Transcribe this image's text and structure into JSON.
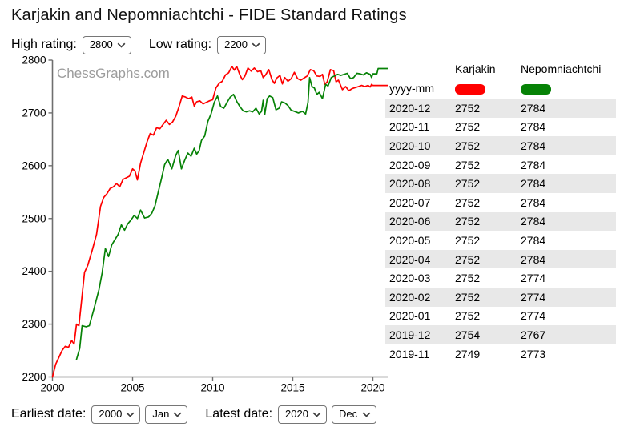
{
  "header": {
    "title": "Karjakin and Nepomniachtchi - FIDE Standard Ratings"
  },
  "watermark": "ChessGraphs.com",
  "controls": {
    "high_rating_label": "High rating:",
    "high_rating_value": "2800",
    "low_rating_label": "Low rating:",
    "low_rating_value": "2200",
    "earliest_date_label": "Earliest date:",
    "earliest_year_value": "2000",
    "earliest_month_value": "Jan",
    "latest_date_label": "Latest date:",
    "latest_year_value": "2020",
    "latest_month_value": "Dec"
  },
  "colors": {
    "karjakin": "#ff0000",
    "nepomniachtchi": "#068206",
    "axis": "#6f6f6f",
    "alt_row": "#e8e8e8",
    "watermark": "#9c9c9c"
  },
  "chart_data": {
    "type": "line",
    "title": "Karjakin and Nepomniachtchi - FIDE Standard Ratings",
    "xlabel": "",
    "ylabel": "",
    "xlim": [
      2000,
      2021
    ],
    "ylim": [
      2200,
      2800
    ],
    "x_ticks": [
      2000,
      2005,
      2010,
      2015,
      2020
    ],
    "y_ticks": [
      2200,
      2300,
      2400,
      2500,
      2600,
      2700,
      2800
    ],
    "grid": false,
    "legend_position": "table-right",
    "series": [
      {
        "name": "Karjakin",
        "color": "#ff0000",
        "points": [
          [
            2000.0,
            2200
          ],
          [
            2000.2,
            2224
          ],
          [
            2000.4,
            2237
          ],
          [
            2000.6,
            2250
          ],
          [
            2000.8,
            2258
          ],
          [
            2001.0,
            2256
          ],
          [
            2001.2,
            2269
          ],
          [
            2001.35,
            2262
          ],
          [
            2001.5,
            2300
          ],
          [
            2001.65,
            2297
          ],
          [
            2001.8,
            2340
          ],
          [
            2002.0,
            2398
          ],
          [
            2002.2,
            2411
          ],
          [
            2002.5,
            2442
          ],
          [
            2002.75,
            2470
          ],
          [
            2003.0,
            2523
          ],
          [
            2003.2,
            2540
          ],
          [
            2003.4,
            2547
          ],
          [
            2003.6,
            2557
          ],
          [
            2003.8,
            2560
          ],
          [
            2004.0,
            2566
          ],
          [
            2004.2,
            2560
          ],
          [
            2004.4,
            2574
          ],
          [
            2004.6,
            2577
          ],
          [
            2004.8,
            2580
          ],
          [
            2005.0,
            2594
          ],
          [
            2005.15,
            2590
          ],
          [
            2005.3,
            2573
          ],
          [
            2005.5,
            2605
          ],
          [
            2005.7,
            2625
          ],
          [
            2005.9,
            2645
          ],
          [
            2006.1,
            2661
          ],
          [
            2006.3,
            2658
          ],
          [
            2006.5,
            2672
          ],
          [
            2006.7,
            2670
          ],
          [
            2006.9,
            2678
          ],
          [
            2007.1,
            2686
          ],
          [
            2007.3,
            2678
          ],
          [
            2007.5,
            2683
          ],
          [
            2007.7,
            2694
          ],
          [
            2007.9,
            2712
          ],
          [
            2008.1,
            2732
          ],
          [
            2008.3,
            2730
          ],
          [
            2008.5,
            2727
          ],
          [
            2008.7,
            2730
          ],
          [
            2008.85,
            2713
          ],
          [
            2009.0,
            2721
          ],
          [
            2009.2,
            2723
          ],
          [
            2009.4,
            2717
          ],
          [
            2009.6,
            2720
          ],
          [
            2009.8,
            2723
          ],
          [
            2010.0,
            2725
          ],
          [
            2010.2,
            2747
          ],
          [
            2010.4,
            2756
          ],
          [
            2010.6,
            2760
          ],
          [
            2010.8,
            2772
          ],
          [
            2011.0,
            2776
          ],
          [
            2011.2,
            2788
          ],
          [
            2011.35,
            2781
          ],
          [
            2011.5,
            2788
          ],
          [
            2011.7,
            2772
          ],
          [
            2011.85,
            2763
          ],
          [
            2012.0,
            2769
          ],
          [
            2012.2,
            2785
          ],
          [
            2012.4,
            2779
          ],
          [
            2012.6,
            2785
          ],
          [
            2012.8,
            2778
          ],
          [
            2013.0,
            2780
          ],
          [
            2013.15,
            2767
          ],
          [
            2013.3,
            2772
          ],
          [
            2013.5,
            2782
          ],
          [
            2013.7,
            2763
          ],
          [
            2013.85,
            2756
          ],
          [
            2014.0,
            2766
          ],
          [
            2014.2,
            2771
          ],
          [
            2014.35,
            2755
          ],
          [
            2014.5,
            2767
          ],
          [
            2014.7,
            2760
          ],
          [
            2014.9,
            2765
          ],
          [
            2015.1,
            2777
          ],
          [
            2015.3,
            2765
          ],
          [
            2015.5,
            2762
          ],
          [
            2015.7,
            2766
          ],
          [
            2015.9,
            2770
          ],
          [
            2016.1,
            2782
          ],
          [
            2016.3,
            2780
          ],
          [
            2016.5,
            2770
          ],
          [
            2016.7,
            2769
          ],
          [
            2016.85,
            2773
          ],
          [
            2017.0,
            2754
          ],
          [
            2017.15,
            2759
          ],
          [
            2017.35,
            2782
          ],
          [
            2017.55,
            2780
          ],
          [
            2017.7,
            2759
          ],
          [
            2017.85,
            2762
          ],
          [
            2018.1,
            2744
          ],
          [
            2018.3,
            2750
          ],
          [
            2018.5,
            2742
          ],
          [
            2018.7,
            2746
          ],
          [
            2018.9,
            2748
          ],
          [
            2019.1,
            2750
          ],
          [
            2019.3,
            2752
          ],
          [
            2019.5,
            2750
          ],
          [
            2019.7,
            2752
          ],
          [
            2019.83,
            2749
          ],
          [
            2019.92,
            2754
          ],
          [
            2020.0,
            2752
          ],
          [
            2020.92,
            2752
          ]
        ]
      },
      {
        "name": "Nepomniachtchi",
        "color": "#068206",
        "points": [
          [
            2001.5,
            2233
          ],
          [
            2001.7,
            2254
          ],
          [
            2001.85,
            2297
          ],
          [
            2002.1,
            2295
          ],
          [
            2002.3,
            2297
          ],
          [
            2002.6,
            2330
          ],
          [
            2002.9,
            2365
          ],
          [
            2003.1,
            2397
          ],
          [
            2003.3,
            2443
          ],
          [
            2003.5,
            2428
          ],
          [
            2003.7,
            2450
          ],
          [
            2003.9,
            2460
          ],
          [
            2004.1,
            2470
          ],
          [
            2004.3,
            2488
          ],
          [
            2004.5,
            2478
          ],
          [
            2004.7,
            2490
          ],
          [
            2004.9,
            2497
          ],
          [
            2005.1,
            2506
          ],
          [
            2005.3,
            2500
          ],
          [
            2005.5,
            2516
          ],
          [
            2005.75,
            2501
          ],
          [
            2006.0,
            2503
          ],
          [
            2006.2,
            2510
          ],
          [
            2006.4,
            2524
          ],
          [
            2006.6,
            2550
          ],
          [
            2006.8,
            2575
          ],
          [
            2007.0,
            2602
          ],
          [
            2007.2,
            2612
          ],
          [
            2007.45,
            2594
          ],
          [
            2007.7,
            2620
          ],
          [
            2007.85,
            2629
          ],
          [
            2008.05,
            2594
          ],
          [
            2008.25,
            2610
          ],
          [
            2008.45,
            2624
          ],
          [
            2008.65,
            2618
          ],
          [
            2008.85,
            2633
          ],
          [
            2009.0,
            2622
          ],
          [
            2009.15,
            2628
          ],
          [
            2009.3,
            2648
          ],
          [
            2009.5,
            2656
          ],
          [
            2009.7,
            2684
          ],
          [
            2009.9,
            2698
          ],
          [
            2010.1,
            2720
          ],
          [
            2010.3,
            2732
          ],
          [
            2010.5,
            2712
          ],
          [
            2010.7,
            2709
          ],
          [
            2010.9,
            2720
          ],
          [
            2011.1,
            2730
          ],
          [
            2011.3,
            2735
          ],
          [
            2011.5,
            2722
          ],
          [
            2011.7,
            2712
          ],
          [
            2011.9,
            2704
          ],
          [
            2012.1,
            2702
          ],
          [
            2012.3,
            2704
          ],
          [
            2012.5,
            2702
          ],
          [
            2012.7,
            2709
          ],
          [
            2012.9,
            2698
          ],
          [
            2013.05,
            2703
          ],
          [
            2013.15,
            2724
          ],
          [
            2013.25,
            2697
          ],
          [
            2013.4,
            2727
          ],
          [
            2013.55,
            2732
          ],
          [
            2013.75,
            2729
          ],
          [
            2013.95,
            2706
          ],
          [
            2014.15,
            2709
          ],
          [
            2014.3,
            2721
          ],
          [
            2014.5,
            2719
          ],
          [
            2014.7,
            2714
          ],
          [
            2014.9,
            2705
          ],
          [
            2015.1,
            2703
          ],
          [
            2015.35,
            2700
          ],
          [
            2015.6,
            2703
          ],
          [
            2015.8,
            2698
          ],
          [
            2015.95,
            2720
          ],
          [
            2016.05,
            2767
          ],
          [
            2016.2,
            2750
          ],
          [
            2016.35,
            2747
          ],
          [
            2016.5,
            2735
          ],
          [
            2016.65,
            2739
          ],
          [
            2016.85,
            2727
          ],
          [
            2017.05,
            2754
          ],
          [
            2017.2,
            2751
          ],
          [
            2017.4,
            2767
          ],
          [
            2017.6,
            2770
          ],
          [
            2017.8,
            2773
          ],
          [
            2018.0,
            2771
          ],
          [
            2018.2,
            2773
          ],
          [
            2018.4,
            2775
          ],
          [
            2018.6,
            2765
          ],
          [
            2018.8,
            2767
          ],
          [
            2019.0,
            2775
          ],
          [
            2019.2,
            2774
          ],
          [
            2019.4,
            2772
          ],
          [
            2019.6,
            2776
          ],
          [
            2019.83,
            2773
          ],
          [
            2019.92,
            2767
          ],
          [
            2020.0,
            2774
          ],
          [
            2020.25,
            2774
          ],
          [
            2020.33,
            2784
          ],
          [
            2020.92,
            2784
          ]
        ]
      }
    ]
  },
  "table": {
    "date_header": "yyyy-mm",
    "columns": [
      "Karjakin",
      "Nepomniachtchi"
    ],
    "colors": [
      "#ff0000",
      "#068206"
    ],
    "rows": [
      [
        "2020-12",
        "2752",
        "2784"
      ],
      [
        "2020-11",
        "2752",
        "2784"
      ],
      [
        "2020-10",
        "2752",
        "2784"
      ],
      [
        "2020-09",
        "2752",
        "2784"
      ],
      [
        "2020-08",
        "2752",
        "2784"
      ],
      [
        "2020-07",
        "2752",
        "2784"
      ],
      [
        "2020-06",
        "2752",
        "2784"
      ],
      [
        "2020-05",
        "2752",
        "2784"
      ],
      [
        "2020-04",
        "2752",
        "2784"
      ],
      [
        "2020-03",
        "2752",
        "2774"
      ],
      [
        "2020-02",
        "2752",
        "2774"
      ],
      [
        "2020-01",
        "2752",
        "2774"
      ],
      [
        "2019-12",
        "2754",
        "2767"
      ],
      [
        "2019-11",
        "2749",
        "2773"
      ]
    ]
  }
}
